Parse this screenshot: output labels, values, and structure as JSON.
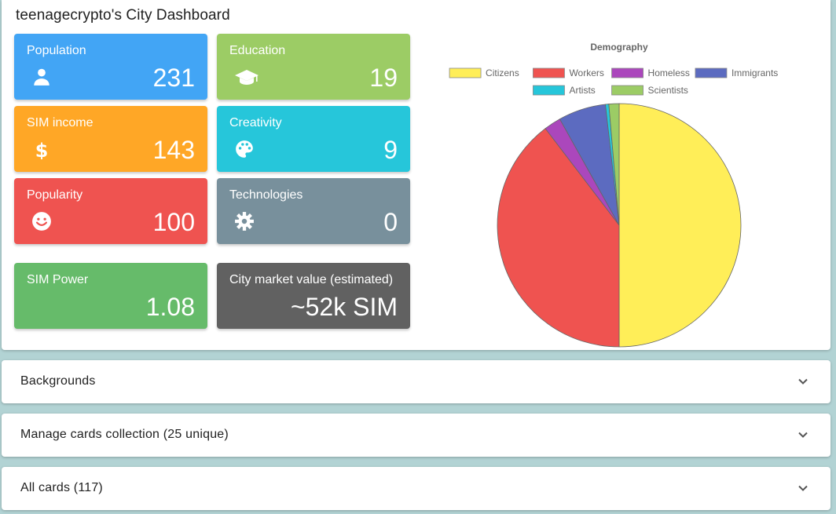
{
  "dashboard": {
    "title": "teenagecrypto's City Dashboard",
    "tiles": {
      "population": {
        "label": "Population",
        "value": "231",
        "icon": "person-icon",
        "color": "#42a5f5"
      },
      "education": {
        "label": "Education",
        "value": "19",
        "icon": "graduation-cap-icon",
        "color": "#9ccc65"
      },
      "sim_income": {
        "label": "SIM income",
        "value": "143",
        "icon": "dollar-icon",
        "color": "#ffa726"
      },
      "creativity": {
        "label": "Creativity",
        "value": "9",
        "icon": "palette-icon",
        "color": "#26c6da"
      },
      "popularity": {
        "label": "Popularity",
        "value": "100",
        "icon": "smile-icon",
        "color": "#ef5350"
      },
      "technologies": {
        "label": "Technologies",
        "value": "0",
        "icon": "gear-icon",
        "color": "#78909c"
      },
      "sim_power": {
        "label": "SIM Power",
        "value": "1.08",
        "color": "#66bb6a"
      },
      "market_value": {
        "label": "City market value (estimated)",
        "value": "~52k SIM",
        "color": "#616161"
      }
    }
  },
  "chart_data": {
    "type": "pie",
    "title": "Demography",
    "legend_position": "top",
    "categories": [
      "Citizens",
      "Workers",
      "Homeless",
      "Immigrants",
      "Artists",
      "Scientists"
    ],
    "values": [
      111,
      88,
      5,
      14,
      1,
      3
    ],
    "colors": [
      "#ffee58",
      "#ef5350",
      "#ab47bc",
      "#5c6bc0",
      "#26c6da",
      "#9ccc65"
    ]
  },
  "accordions": {
    "backgrounds": "Backgrounds",
    "manage_cards": "Manage cards collection (25 unique)",
    "all_cards": "All cards (117)"
  }
}
